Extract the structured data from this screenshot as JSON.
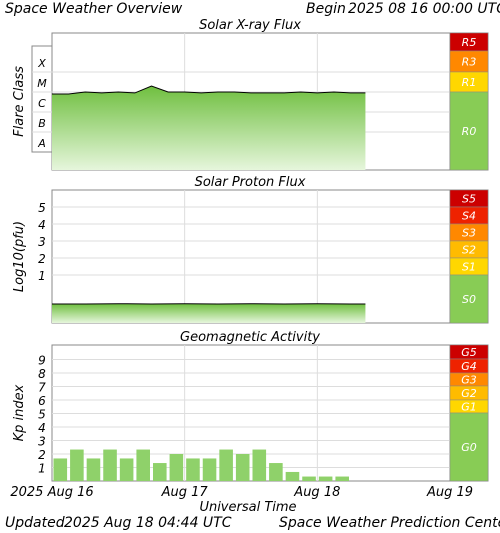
{
  "header": {
    "title": "Space Weather Overview",
    "begin_label": "Begin",
    "begin_time": "2025 08 16 00:00 UTC"
  },
  "footer": {
    "updated_label": "Updated",
    "updated_time": "2025 Aug 18 04:44 UTC",
    "credit": "Space Weather Prediction Center"
  },
  "x_axis": {
    "label": "Universal Time",
    "ticks": [
      "2025 Aug 16",
      "Aug 17",
      "Aug 18",
      "Aug 19"
    ]
  },
  "chart_data": [
    {
      "type": "area",
      "title": "Solar X-ray Flux",
      "ylabel": "Flare Class",
      "y_categories": [
        "A",
        "B",
        "C",
        "M",
        "X"
      ],
      "scale_labels": [
        "R5",
        "R3",
        "R1",
        "R0"
      ],
      "colors": {
        "fill": "#8fd16a",
        "line": "#000000",
        "R5": "#cc0000",
        "R3": "#ff8800",
        "R1": "#ffd700",
        "R0": "#88cc55"
      },
      "x_hours": [
        0,
        3,
        6,
        9,
        12,
        15,
        18,
        21,
        24,
        27,
        30,
        33,
        36,
        39,
        42,
        45,
        48,
        51,
        54,
        56.7
      ],
      "values": [
        "B8",
        "B8",
        "C1",
        "B9",
        "C1",
        "B9",
        "C2",
        "C1",
        "C1",
        "B9",
        "C1",
        "C1",
        "B9",
        "B9",
        "B9",
        "C1",
        "B9",
        "C1",
        "B9",
        "B9"
      ]
    },
    {
      "type": "area",
      "title": "Solar Proton Flux",
      "ylabel": "Log10(pfu)",
      "y_ticks": [
        "1",
        "2",
        "3",
        "4",
        "5"
      ],
      "scale_labels": [
        "S5",
        "S4",
        "S3",
        "S2",
        "S1",
        "S0"
      ],
      "colors": {
        "fill": "#8fd16a",
        "line": "#000000",
        "S5": "#cc0000",
        "S4": "#ee2200",
        "S3": "#ff8800",
        "S2": "#ffbb00",
        "S1": "#ffd700",
        "S0": "#88cc55"
      },
      "x_hours": [
        0,
        6,
        12,
        18,
        24,
        30,
        36,
        42,
        48,
        54,
        56.7
      ],
      "values": [
        -0.9,
        -0.9,
        -0.85,
        -0.9,
        -0.85,
        -0.9,
        -0.85,
        -0.9,
        -0.85,
        -0.9,
        -0.9
      ]
    },
    {
      "type": "bar",
      "title": "Geomagnetic Activity",
      "ylabel": "Kp index",
      "y_ticks": [
        "1",
        "2",
        "3",
        "4",
        "5",
        "6",
        "7",
        "8",
        "9"
      ],
      "scale_labels": [
        "G5",
        "G4",
        "G3",
        "G2",
        "G1",
        "G0"
      ],
      "colors": {
        "bar": "#8fd16a",
        "G5": "#cc0000",
        "G4": "#ee2200",
        "G3": "#ff8800",
        "G2": "#ffbb00",
        "G1": "#ffd700",
        "G0": "#88cc55"
      },
      "x_hours": [
        0,
        3,
        6,
        9,
        12,
        15,
        18,
        21,
        24,
        27,
        30,
        33,
        36,
        39,
        42,
        45,
        48,
        51,
        54
      ],
      "values": [
        1.67,
        2.33,
        1.67,
        2.33,
        1.67,
        2.33,
        1.33,
        2.0,
        1.67,
        1.67,
        2.33,
        2.0,
        2.33,
        1.33,
        0.67,
        0.33,
        0.33,
        0.33,
        0.0
      ]
    }
  ]
}
